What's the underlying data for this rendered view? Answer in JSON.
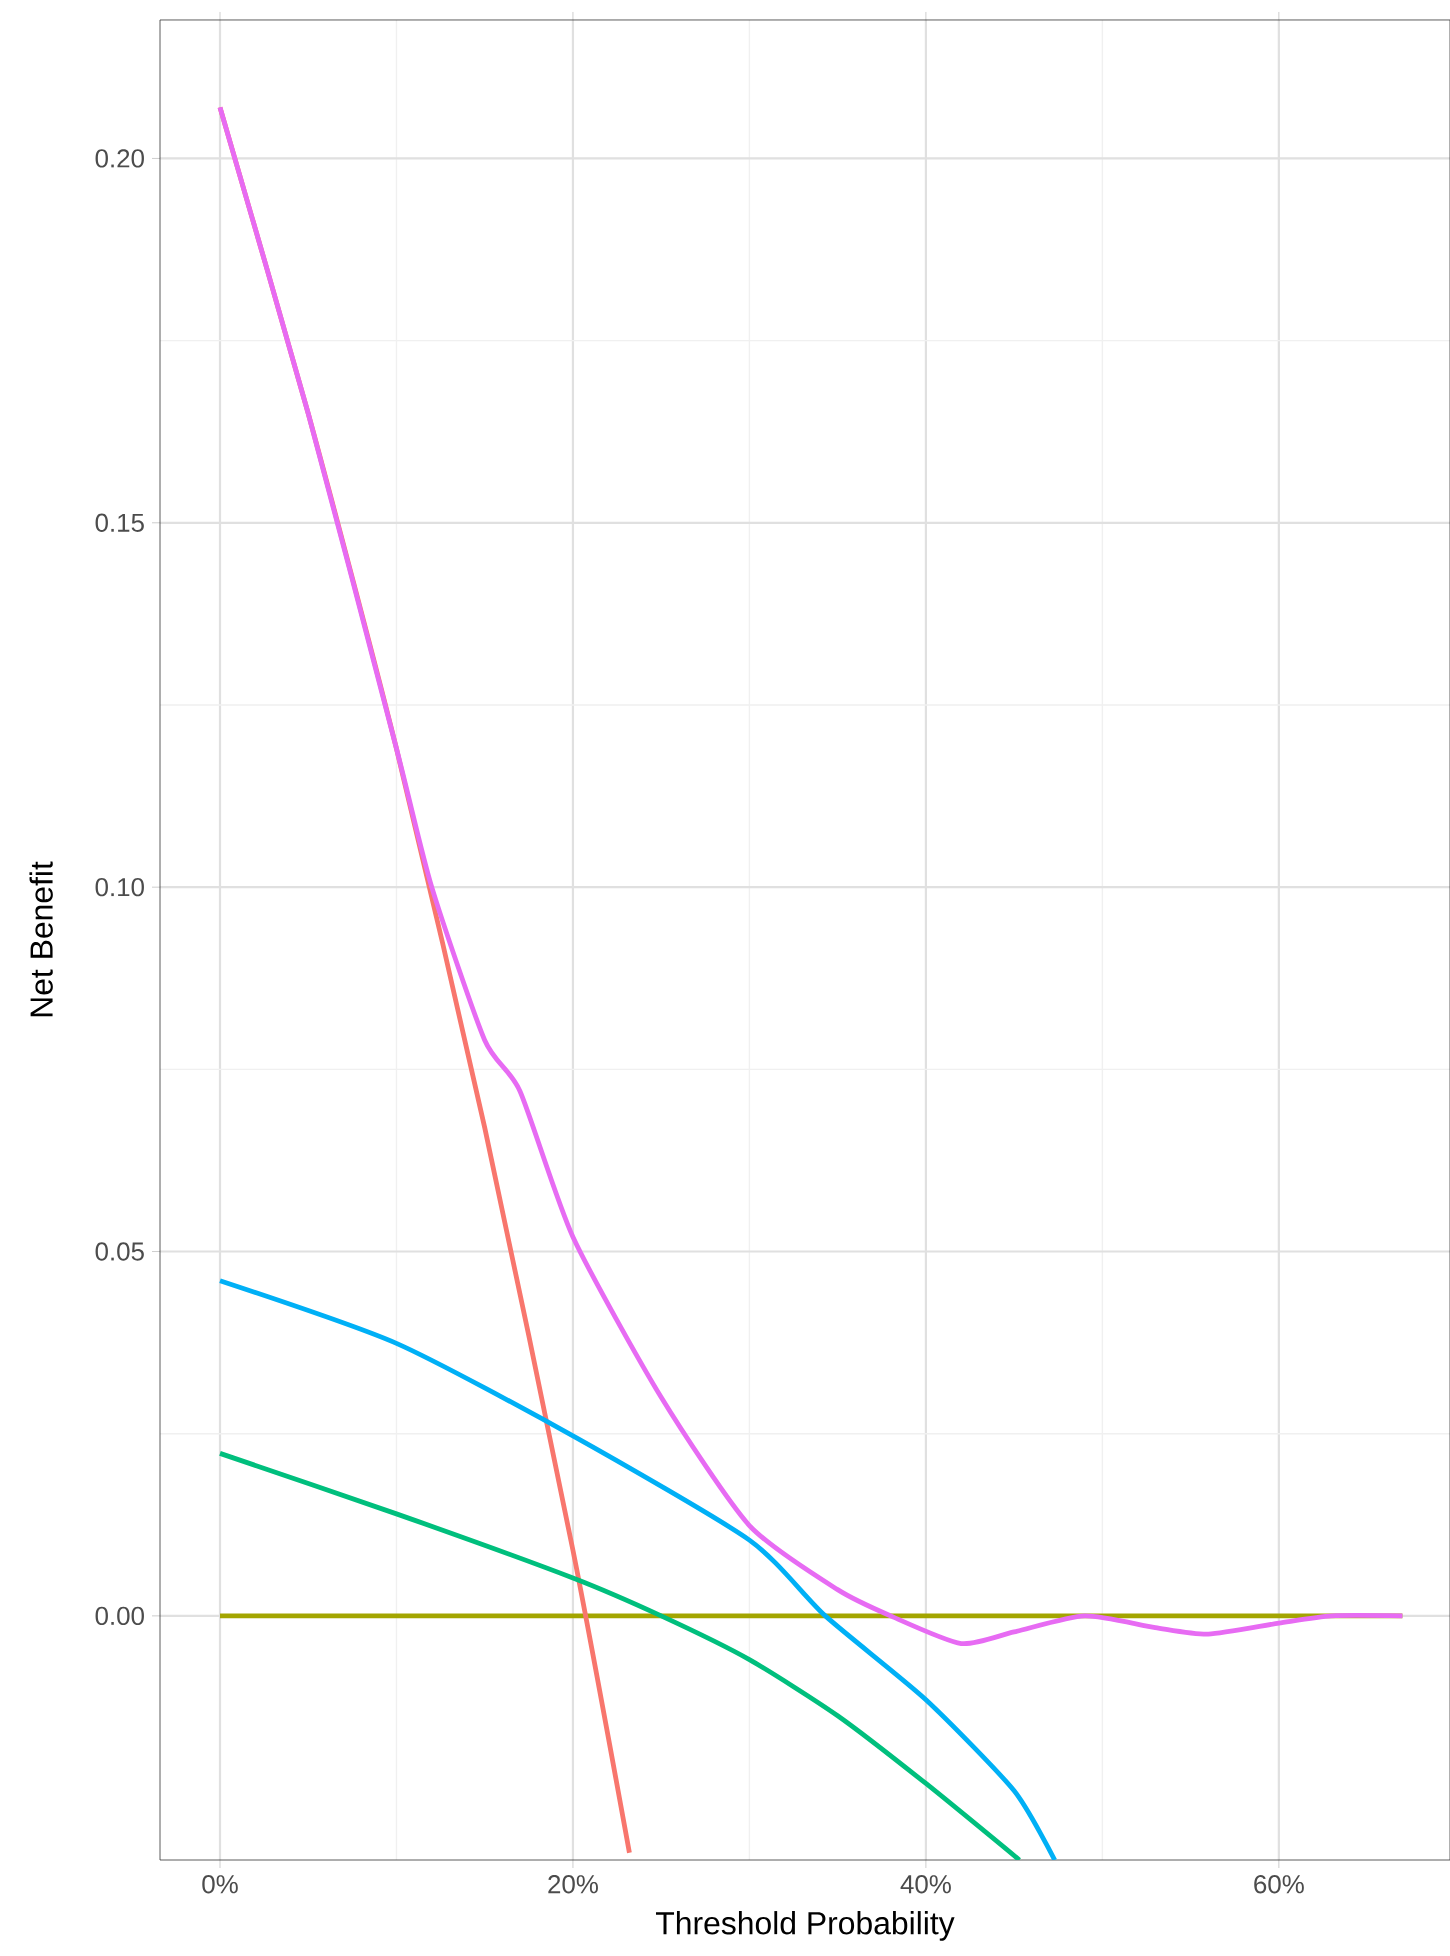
{
  "chart_data": {
    "type": "line",
    "xlabel": "Threshold Probability",
    "ylabel": "Net Benefit",
    "xlim": [
      -3.4,
      69.7
    ],
    "ylim": [
      -0.0335,
      0.219
    ],
    "xticks": [
      {
        "value": 0,
        "label": "0%"
      },
      {
        "value": 20,
        "label": "20%"
      },
      {
        "value": 40,
        "label": "40%"
      },
      {
        "value": 60,
        "label": "60%"
      }
    ],
    "yticks": [
      {
        "value": 0,
        "label": "0.00"
      },
      {
        "value": 0.05,
        "label": "0.05"
      },
      {
        "value": 0.1,
        "label": "0.10"
      },
      {
        "value": 0.15,
        "label": "0.15"
      },
      {
        "value": 0.2,
        "label": "0.20"
      }
    ],
    "grid": true,
    "series": [
      {
        "color": "#a3a500",
        "x": [
          0,
          67
        ],
        "values": [
          0,
          0
        ]
      },
      {
        "color": "#f8766d",
        "x": [
          0,
          5,
          10,
          15,
          20,
          23.2
        ],
        "values": [
          0.207,
          0.165,
          0.119,
          0.067,
          0.009,
          -0.0325
        ]
      },
      {
        "color": "#00bf7d",
        "x": [
          0,
          10,
          20,
          25,
          30,
          35,
          40,
          45.3
        ],
        "values": [
          0.0223,
          0.014,
          0.0052,
          0,
          -0.006,
          -0.0137,
          -0.023,
          -0.0335
        ]
      },
      {
        "color": "#00b0f6",
        "x": [
          0,
          10,
          20,
          30,
          34.3,
          40,
          45,
          47.3
        ],
        "values": [
          0.046,
          0.0374,
          0.0247,
          0.0104,
          0,
          -0.0115,
          -0.024,
          -0.0335
        ]
      },
      {
        "color": "#e76bf3",
        "x": [
          0,
          5,
          10,
          12,
          15,
          17,
          20,
          25,
          30,
          35,
          38,
          42,
          45,
          49,
          53,
          56,
          60,
          63,
          67
        ],
        "values": [
          0.207,
          0.165,
          0.119,
          0.1,
          0.079,
          0.072,
          0.052,
          0.03,
          0.0124,
          0.0036,
          0,
          -0.0038,
          -0.0022,
          0,
          -0.0016,
          -0.0025,
          -0.001,
          0,
          0
        ]
      }
    ]
  }
}
